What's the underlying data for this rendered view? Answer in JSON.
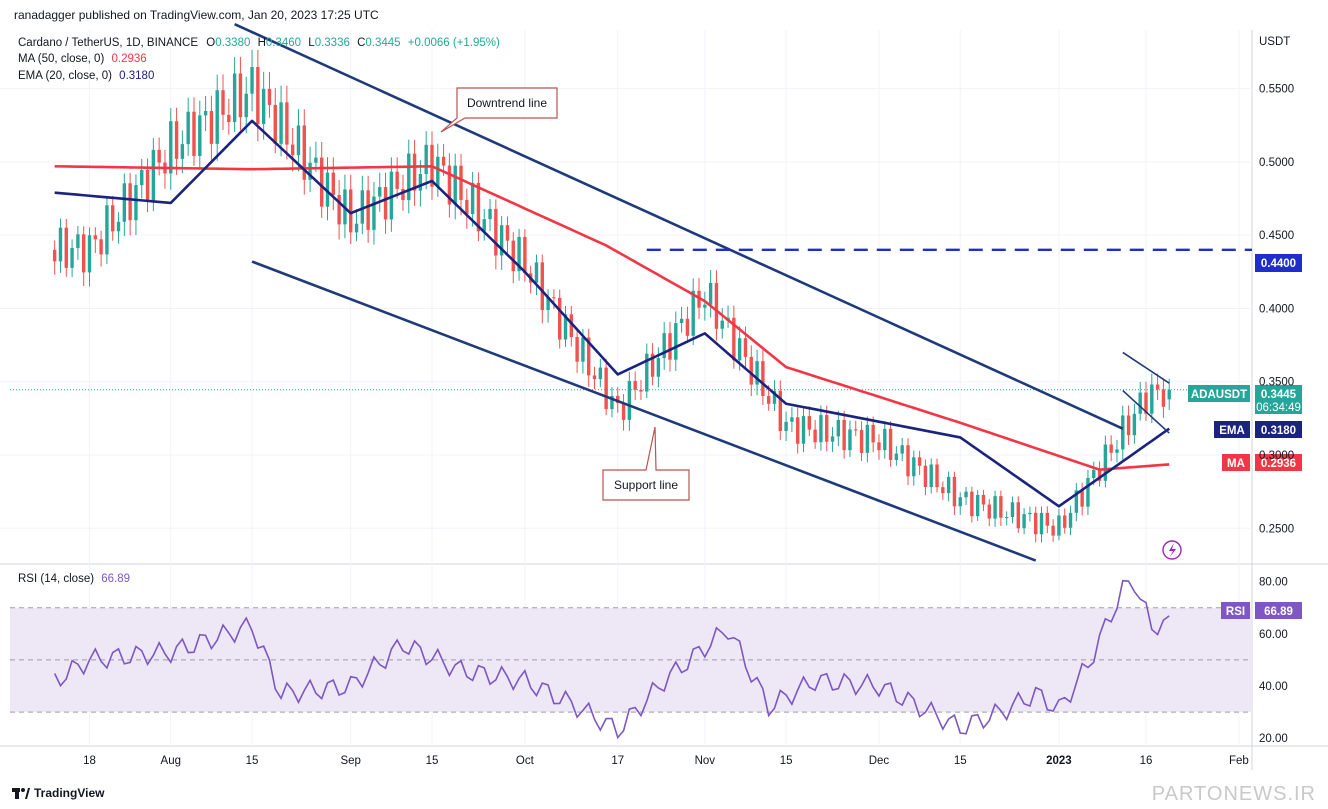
{
  "header": {
    "published": "ranadagger published on TradingView.com, Jan 20, 2023 17:25 UTC"
  },
  "legend": {
    "symbol": "Cardano / TetherUS, 1D, BINANCE",
    "o_label": "O",
    "o_value": "0.3380",
    "h_label": "H",
    "h_value": "0.3460",
    "l_label": "L",
    "l_value": "0.3336",
    "c_label": "C",
    "c_value": "0.3445",
    "change": "+0.0066 (+1.95%)",
    "ma_label": "MA (50, close, 0)",
    "ma_value": "0.2936",
    "ema_label": "EMA (20, close, 0)",
    "ema_value": "0.3180",
    "rsi_label": "RSI (14, close)",
    "rsi_value": "66.89"
  },
  "colors": {
    "up": "#26a69a",
    "down": "#ef5350",
    "ema": "#1a237e",
    "ma": "#f23645",
    "trend": "#1f3a7a",
    "resistance": "#1f2ecb",
    "rsi": "#7e57c2",
    "rsi_band": "#ede7f6"
  },
  "tags": {
    "price_axis_unit": "USDT",
    "level": "0.4400",
    "symbol_tag": "ADAUSDT",
    "price": "0.3445",
    "countdown": "06:34:49",
    "ema_tag": "EMA",
    "ema_value": "0.3180",
    "ma_tag": "MA",
    "ma_value": "0.2936",
    "rsi_tag": "RSI",
    "rsi_value": "66.89"
  },
  "annotations": {
    "downtrend": "Downtrend line",
    "support": "Support line"
  },
  "footer": {
    "brand": "TradingView",
    "watermark": "PARTONEWS.IR"
  },
  "chart_data": [
    {
      "type": "candlestick",
      "title": "Cardano / TetherUS, 1D, BINANCE",
      "y_axis_unit": "USDT",
      "ylim": [
        0.227,
        0.59
      ],
      "y_ticks": [
        "0.2500",
        "0.3000",
        "0.3500",
        "0.4000",
        "0.4500",
        "0.5000",
        "0.5500"
      ],
      "x_ticks": [
        "18",
        "Aug",
        "15",
        "Sep",
        "15",
        "Oct",
        "17",
        "Nov",
        "15",
        "Dec",
        "15",
        "2023",
        "16",
        "Feb"
      ],
      "anchor_points": {
        "x": [
          "Jul 18",
          "Aug 1",
          "Aug 15",
          "Sep 1",
          "Sep 15",
          "Oct 1",
          "Oct 17",
          "Nov 1",
          "Nov 15",
          "Dec 1",
          "Dec 15",
          "Jan 1",
          "Jan 16",
          "Jan 20"
        ],
        "close": [
          0.44,
          0.51,
          0.55,
          0.46,
          0.5,
          0.43,
          0.33,
          0.41,
          0.32,
          0.31,
          0.27,
          0.25,
          0.34,
          0.3445
        ]
      },
      "ma50": {
        "x": [
          "Jul 12",
          "Aug 15",
          "Sep 15",
          "Oct 15",
          "Nov 1",
          "Nov 15",
          "Dec 15",
          "Jan 8",
          "Jan 20"
        ],
        "values": [
          0.497,
          0.495,
          0.497,
          0.443,
          0.405,
          0.36,
          0.322,
          0.29,
          0.2936
        ]
      },
      "ema20": {
        "x": [
          "Jul 12",
          "Aug 1",
          "Aug 15",
          "Sep 1",
          "Sep 15",
          "Oct 1",
          "Oct 17",
          "Nov 1",
          "Nov 15",
          "Dec 15",
          "Jan 1",
          "Jan 20"
        ],
        "values": [
          0.479,
          0.472,
          0.528,
          0.465,
          0.487,
          0.425,
          0.355,
          0.383,
          0.335,
          0.312,
          0.265,
          0.318
        ]
      },
      "downtrend_line": {
        "x": [
          "Aug 12",
          "Jan 12"
        ],
        "y": [
          0.594,
          0.318
        ]
      },
      "support_line": {
        "x": [
          "Aug 15",
          "Dec 28"
        ],
        "y": [
          0.432,
          0.228
        ]
      },
      "flag_upper": {
        "x": [
          "Jan 12",
          "Jan 20"
        ],
        "y": [
          0.37,
          0.349
        ]
      },
      "flag_lower": {
        "x": [
          "Jan 12",
          "Jan 20"
        ],
        "y": [
          0.344,
          0.315
        ]
      },
      "resistance_level": 0.44,
      "last_close": 0.3445,
      "ma": 0.2936,
      "ema": 0.318
    },
    {
      "type": "line",
      "title": "RSI (14, close)",
      "ylim": [
        17,
        86
      ],
      "y_ticks": [
        "20.00",
        "40.00",
        "60.00",
        "80.00"
      ],
      "band": [
        30,
        70
      ],
      "midline": 50,
      "x": [
        "Jul 12",
        "Jul 18",
        "Aug 1",
        "Aug 15",
        "Aug 20",
        "Sep 1",
        "Sep 10",
        "Sep 20",
        "Oct 1",
        "Oct 10",
        "Oct 17",
        "Oct 25",
        "Nov 5",
        "Nov 12",
        "Nov 20",
        "Dec 1",
        "Dec 15",
        "Dec 22",
        "Dec 28",
        "Jan 1",
        "Jan 6",
        "Jan 12",
        "Jan 14",
        "Jan 17",
        "Jan 20"
      ],
      "values": [
        42,
        50,
        53,
        63,
        37,
        40,
        56,
        46,
        42,
        32,
        23,
        42,
        62,
        32,
        42,
        40,
        24,
        30,
        37,
        31,
        48,
        77,
        80,
        62,
        66.89
      ]
    }
  ]
}
